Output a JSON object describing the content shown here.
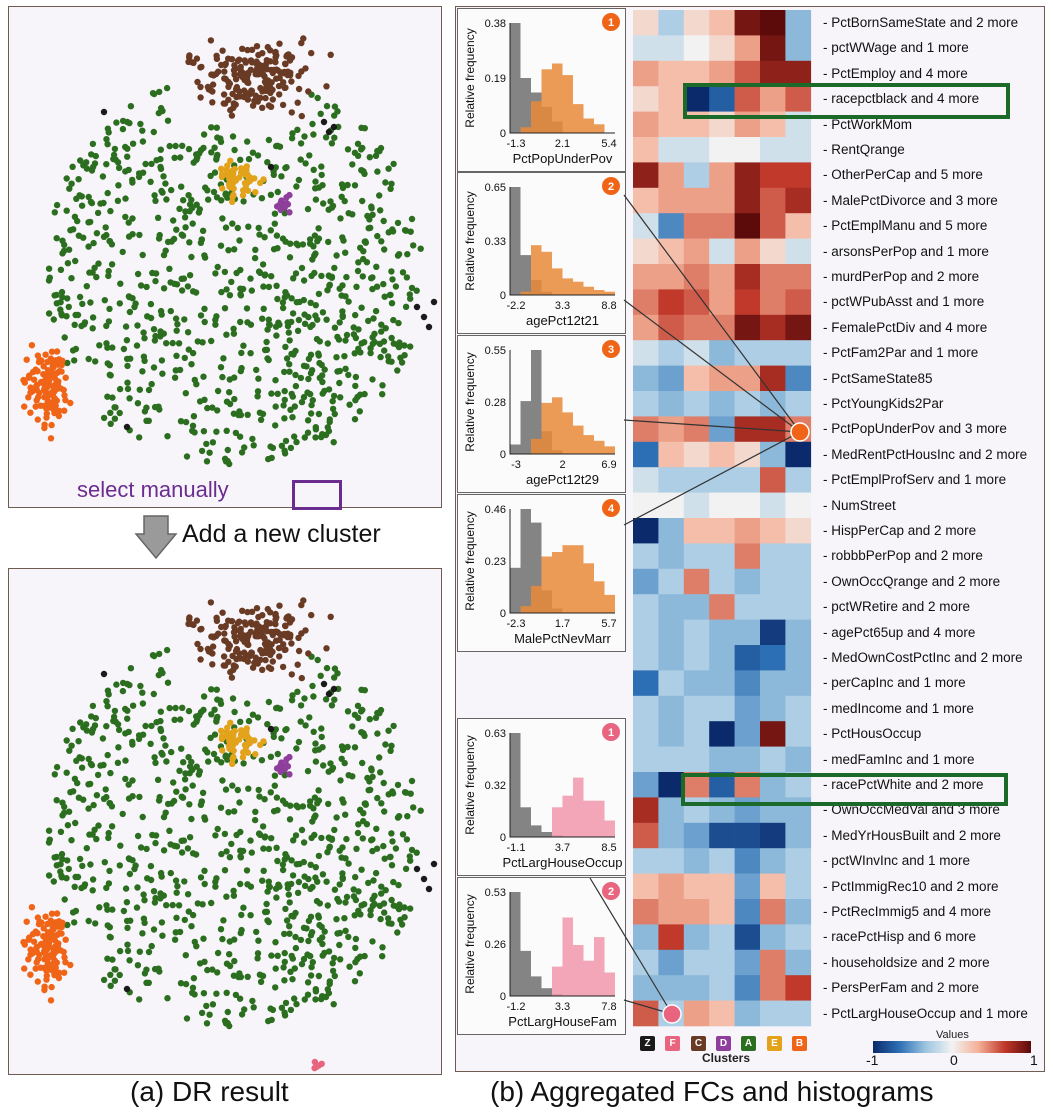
{
  "panel_a": {
    "select_label": "select manually",
    "action_label": "Add a new cluster",
    "caption": "(a) DR result"
  },
  "panel_b": {
    "caption": "(b) Aggregated FCs and histograms",
    "clusters_label": "Clusters",
    "values_label": "Values",
    "colorbar_ticks": [
      "-1",
      "0",
      "1"
    ]
  },
  "colors": {
    "cluster_Z": "#1a1a1a",
    "cluster_F": "#e8647f",
    "cluster_C": "#6a3b24",
    "cluster_D": "#8e3e9b",
    "cluster_A": "#2c6e1f",
    "cluster_E": "#e2a21a",
    "cluster_B": "#f06418",
    "selected_gray": "#808080",
    "selected_orange": "#e98a38",
    "selected_pink": "#f0a0b5",
    "highlight_green": "#1b6a2a",
    "manual_select": "#6b2c8f"
  },
  "chart_data": [
    {
      "type": "scatter",
      "panel": "a-top",
      "clusters": [
        {
          "name": "A",
          "color": "green",
          "approx_points": 900
        },
        {
          "name": "B",
          "color": "orange",
          "approx_points": 120
        },
        {
          "name": "C",
          "color": "brown",
          "approx_points": 200
        },
        {
          "name": "D",
          "color": "purple",
          "approx_points": 15
        },
        {
          "name": "E",
          "color": "gold",
          "approx_points": 50
        },
        {
          "name": "Z",
          "color": "black",
          "approx_points": 15
        }
      ]
    },
    {
      "type": "scatter",
      "panel": "a-bottom",
      "clusters": [
        {
          "name": "A",
          "color": "green",
          "approx_points": 900
        },
        {
          "name": "B",
          "color": "orange",
          "approx_points": 120
        },
        {
          "name": "C",
          "color": "brown",
          "approx_points": 200
        },
        {
          "name": "D",
          "color": "purple",
          "approx_points": 15
        },
        {
          "name": "E",
          "color": "gold",
          "approx_points": 50
        },
        {
          "name": "F",
          "color": "pink",
          "approx_points": 6
        },
        {
          "name": "Z",
          "color": "black",
          "approx_points": 15
        }
      ]
    },
    {
      "type": "heatmap",
      "x_label": "Clusters",
      "columns": [
        "Z",
        "F",
        "C",
        "D",
        "A",
        "E",
        "B"
      ],
      "rows": [
        "PctBornSameState and 2 more",
        "pctWWage and 1 more",
        "PctEmploy and 4 more",
        "racepctblack and 4 more",
        "PctWorkMom",
        "RentQrange",
        "OtherPerCap and 5 more",
        "MalePctDivorce and 3 more",
        "PctEmplManu and 5 more",
        "arsonsPerPop and 1 more",
        "murdPerPop and 2 more",
        "pctWPubAsst and 1 more",
        "FemalePctDiv and 4 more",
        "PctFam2Par and 1 more",
        "PctSameState85",
        "PctYoungKids2Par",
        "PctPopUnderPov and 3 more",
        "MedRentPctHousInc and 2 more",
        "PctEmplProfServ and 1 more",
        "NumStreet",
        "HispPerCap and 2 more",
        "robbbPerPop and 2 more",
        "OwnOccQrange and 2 more",
        "pctWRetire and 2 more",
        "agePct65up and 4 more",
        "MedOwnCostPctInc and 2 more",
        "perCapInc and 1 more",
        "medIncome and 1 more",
        "PctHousOccup",
        "medFamInc and 1 more",
        "racePctWhite and 2 more",
        "OwnOccMedVal and 3 more",
        "MedYrHousBuilt and 2 more",
        "pctWInvInc and 1 more",
        "PctImmigRec10 and 2 more",
        "PctRecImmig5 and 4 more",
        "racePctHisp and 6 more",
        "householdsize and 2 more",
        "PersPerFam and 2 more",
        "PctLargHouseOccup and 1 more"
      ],
      "highlighted_rows": [
        "racepctblack and 4 more",
        "racePctWhite and 2 more"
      ],
      "values": [
        [
          0.1,
          -0.2,
          0.1,
          0.2,
          0.9,
          1.0,
          -0.3
        ],
        [
          -0.1,
          -0.1,
          0.0,
          0.1,
          0.3,
          0.9,
          -0.3
        ],
        [
          0.3,
          0.2,
          0.2,
          0.3,
          0.5,
          0.8,
          0.8
        ],
        [
          0.1,
          0.2,
          -1.0,
          -0.7,
          0.5,
          0.3,
          0.5
        ],
        [
          0.3,
          0.2,
          0.2,
          0.1,
          0.3,
          0.2,
          -0.1
        ],
        [
          0.2,
          -0.1,
          -0.1,
          0.0,
          0.0,
          -0.1,
          -0.1
        ],
        [
          0.8,
          0.3,
          -0.2,
          0.3,
          0.8,
          0.6,
          0.6
        ],
        [
          0.2,
          0.3,
          0.3,
          0.3,
          0.8,
          0.5,
          0.7
        ],
        [
          -0.1,
          -0.5,
          0.4,
          0.4,
          1.0,
          0.5,
          0.2
        ],
        [
          0.1,
          0.2,
          0.3,
          -0.1,
          0.3,
          0.1,
          -0.1
        ],
        [
          0.3,
          0.3,
          0.4,
          0.3,
          0.7,
          0.4,
          0.4
        ],
        [
          0.4,
          0.6,
          0.5,
          0.3,
          0.6,
          0.4,
          0.5
        ],
        [
          0.3,
          0.5,
          0.4,
          0.4,
          0.9,
          0.7,
          0.9
        ],
        [
          -0.1,
          -0.2,
          -0.1,
          -0.3,
          -0.2,
          -0.2,
          -0.2
        ],
        [
          -0.3,
          -0.4,
          0.2,
          0.3,
          0.3,
          0.7,
          -0.5
        ],
        [
          -0.2,
          -0.3,
          -0.2,
          -0.3,
          -0.2,
          -0.3,
          -0.2
        ],
        [
          0.4,
          0.3,
          0.4,
          -0.4,
          0.7,
          0.7,
          0.4
        ],
        [
          -0.6,
          0.2,
          0.1,
          0.2,
          0.1,
          -0.3,
          -1.0
        ],
        [
          -0.1,
          -0.2,
          -0.2,
          -0.2,
          -0.2,
          0.5,
          -0.2
        ],
        [
          0.0,
          0.0,
          -0.1,
          0.0,
          0.0,
          -0.1,
          0.0
        ],
        [
          -1.0,
          -0.3,
          0.2,
          0.2,
          0.3,
          0.2,
          0.1
        ],
        [
          -0.2,
          -0.3,
          -0.2,
          -0.2,
          0.4,
          -0.2,
          -0.2
        ],
        [
          -0.4,
          -0.2,
          0.4,
          -0.2,
          -0.3,
          -0.2,
          -0.2
        ],
        [
          -0.2,
          -0.3,
          -0.3,
          0.4,
          -0.2,
          -0.2,
          -0.2
        ],
        [
          -0.2,
          -0.3,
          -0.2,
          -0.3,
          -0.3,
          -0.9,
          -0.3
        ],
        [
          -0.2,
          -0.3,
          -0.2,
          -0.3,
          -0.7,
          -0.6,
          -0.3
        ],
        [
          -0.6,
          -0.2,
          -0.3,
          -0.3,
          -0.5,
          -0.3,
          -0.3
        ],
        [
          -0.2,
          -0.3,
          -0.2,
          -0.2,
          -0.4,
          -0.3,
          -0.2
        ],
        [
          -0.2,
          -0.3,
          -0.2,
          -1.0,
          -0.4,
          0.9,
          -0.2
        ],
        [
          -0.2,
          -0.2,
          -0.2,
          -0.3,
          -0.3,
          -0.2,
          -0.3
        ],
        [
          -0.4,
          -1.0,
          0.4,
          -0.7,
          0.4,
          -0.3,
          -0.2
        ],
        [
          0.7,
          -0.3,
          -0.2,
          -0.3,
          -0.4,
          -0.3,
          -0.3
        ],
        [
          0.5,
          -0.3,
          -0.4,
          -0.8,
          -0.8,
          -0.9,
          -0.3
        ],
        [
          -0.2,
          -0.2,
          -0.3,
          -0.2,
          -0.5,
          -0.3,
          -0.2
        ],
        [
          0.2,
          0.3,
          0.2,
          0.2,
          -0.4,
          0.2,
          -0.2
        ],
        [
          0.4,
          0.3,
          0.3,
          0.2,
          -0.5,
          0.4,
          -0.3
        ],
        [
          -0.3,
          0.6,
          -0.3,
          -0.2,
          -0.8,
          -0.3,
          -0.2
        ],
        [
          -0.2,
          -0.4,
          -0.2,
          -0.2,
          -0.4,
          0.4,
          -0.3
        ],
        [
          -0.3,
          -0.3,
          -0.3,
          -0.2,
          -0.5,
          0.4,
          0.6
        ],
        [
          0.5,
          -0.2,
          0.3,
          0.2,
          -0.3,
          -0.2,
          -0.2
        ]
      ],
      "colorbar": {
        "min": -1,
        "max": 1
      }
    },
    {
      "type": "bar",
      "badge": "1",
      "xlabel": "PctPopUnderPov",
      "ylabel": "Relative frequency",
      "yticks": [
        "0.38",
        "0.19",
        "0"
      ],
      "xticks": [
        "-1.3",
        "2.1",
        "5.4"
      ],
      "ylim": [
        0,
        0.38
      ],
      "series": [
        {
          "values": [
            0.38,
            0.19,
            0.14,
            0.09,
            0.04,
            0,
            0,
            0,
            0,
            0
          ]
        },
        {
          "values": [
            0,
            0.02,
            0.11,
            0.22,
            0.24,
            0.2,
            0.1,
            0.05,
            0.03,
            0
          ]
        }
      ]
    },
    {
      "type": "bar",
      "badge": "2",
      "xlabel": "agePct12t21",
      "ylabel": "Relative frequency",
      "yticks": [
        "0.65",
        "0.33",
        "0"
      ],
      "xticks": [
        "-2.2",
        "3.3",
        "8.8"
      ],
      "ylim": [
        0,
        0.65
      ],
      "series": [
        {
          "values": [
            0.65,
            0.24,
            0.09,
            0.02,
            0,
            0,
            0,
            0,
            0,
            0
          ]
        },
        {
          "values": [
            0,
            0.02,
            0.3,
            0.26,
            0.16,
            0.1,
            0.08,
            0.05,
            0.03,
            0.02
          ]
        }
      ]
    },
    {
      "type": "bar",
      "badge": "3",
      "xlabel": "agePct12t29",
      "ylabel": "Relative frequency",
      "yticks": [
        "0.55",
        "0.28",
        "0"
      ],
      "xticks": [
        "-3",
        "2",
        "6.9"
      ],
      "ylim": [
        0,
        0.55
      ],
      "series": [
        {
          "values": [
            0.05,
            0.28,
            0.55,
            0.12,
            0.02,
            0,
            0,
            0,
            0,
            0
          ]
        },
        {
          "values": [
            0,
            0,
            0.08,
            0.27,
            0.3,
            0.22,
            0.15,
            0.1,
            0.07,
            0.04
          ]
        }
      ]
    },
    {
      "type": "bar",
      "badge": "4",
      "xlabel": "MalePctNevMarr",
      "ylabel": "Relative frequency",
      "yticks": [
        "0.46",
        "0.23",
        "0"
      ],
      "xticks": [
        "-2.3",
        "1.7",
        "5.7"
      ],
      "ylim": [
        0,
        0.46
      ],
      "series": [
        {
          "values": [
            0.2,
            0.46,
            0.4,
            0.1,
            0.02,
            0,
            0,
            0,
            0,
            0
          ]
        },
        {
          "values": [
            0,
            0.03,
            0.12,
            0.25,
            0.27,
            0.3,
            0.3,
            0.22,
            0.14,
            0.08
          ]
        }
      ]
    },
    {
      "type": "bar",
      "badge": "1",
      "xlabel": "PctLargHouseOccup",
      "ylabel": "Relative frequency",
      "yticks": [
        "0.63",
        "0.32",
        "0"
      ],
      "xticks": [
        "-1.1",
        "3.7",
        "8.5"
      ],
      "ylim": [
        0,
        0.63
      ],
      "series": [
        {
          "values": [
            0.63,
            0.18,
            0.07,
            0.03,
            0.01,
            0,
            0,
            0,
            0,
            0
          ]
        },
        {
          "values": [
            0,
            0,
            0,
            0,
            0.18,
            0.25,
            0.36,
            0.22,
            0.22,
            0.1
          ]
        }
      ]
    },
    {
      "type": "bar",
      "badge": "2",
      "xlabel": "PctLargHouseFam",
      "ylabel": "Relative frequency",
      "yticks": [
        "0.53",
        "0.26",
        "0"
      ],
      "xticks": [
        "-1.2",
        "3.3",
        "7.8"
      ],
      "ylim": [
        0,
        0.53
      ],
      "series": [
        {
          "values": [
            0.53,
            0.23,
            0.1,
            0.04,
            0.01,
            0,
            0,
            0,
            0,
            0
          ]
        },
        {
          "values": [
            0,
            0,
            0,
            0,
            0.15,
            0.4,
            0.26,
            0.18,
            0.3,
            0.12
          ]
        }
      ]
    }
  ]
}
